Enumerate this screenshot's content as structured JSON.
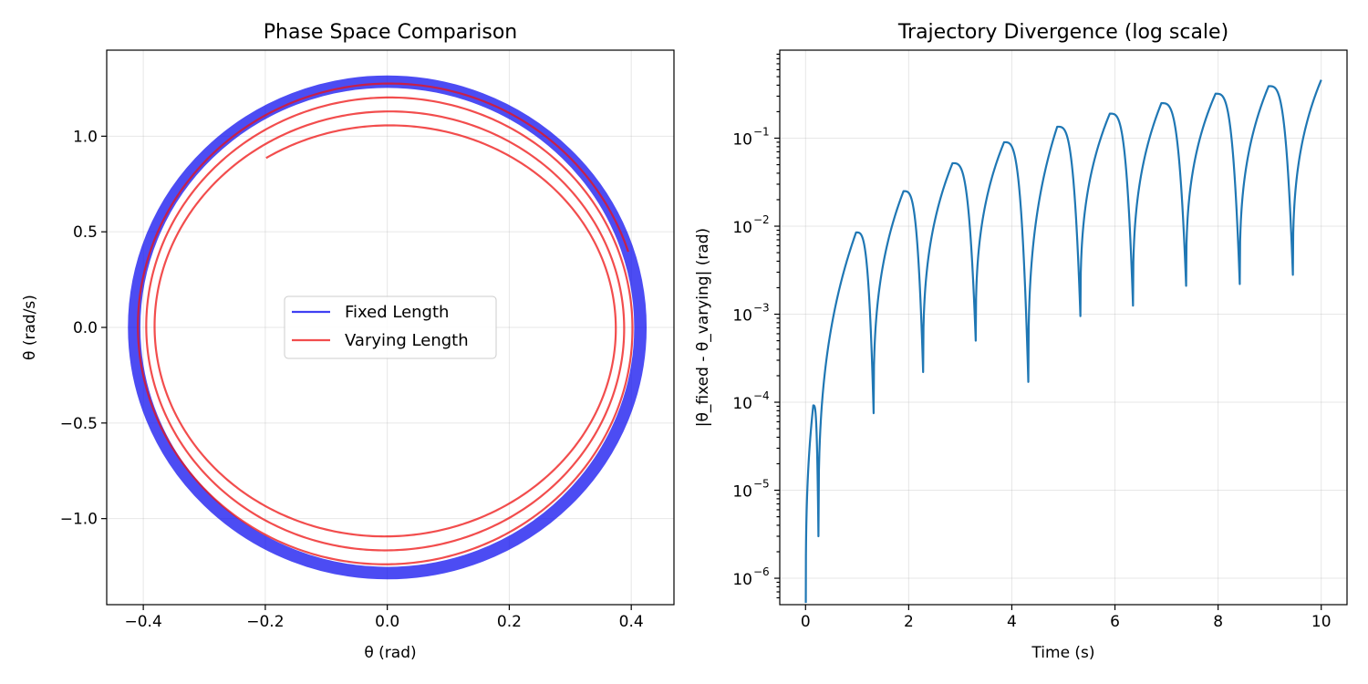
{
  "chart_data": [
    {
      "type": "line",
      "title": "Phase Space Comparison",
      "xlabel": "θ (rad)",
      "ylabel": "θ (rad/s)",
      "xlim": [
        -0.46,
        0.47
      ],
      "ylim": [
        -1.45,
        1.45
      ],
      "xticks": [
        -0.4,
        -0.2,
        0.0,
        0.2,
        0.4
      ],
      "xtick_labels": [
        "−0.4",
        "−0.2",
        "0.0",
        "0.2",
        "0.4"
      ],
      "yticks": [
        -1.0,
        -0.5,
        0.0,
        0.5,
        1.0
      ],
      "ytick_labels": [
        "−1.0",
        "−0.5",
        "0.0",
        "0.5",
        "1.0"
      ],
      "grid": true,
      "legend_position": "center",
      "series": [
        {
          "name": "Fixed Length",
          "color": "#0000ee",
          "shape": "closed ellipse band",
          "theta_amplitude_range": [
            0.41,
            0.42
          ],
          "omega_amplitude_range": [
            1.27,
            1.3
          ]
        },
        {
          "name": "Varying Length",
          "color": "#ee1111",
          "shape": "inward spiral",
          "start": [
            0.395,
            0.5
          ],
          "end": [
            -0.195,
            0.87
          ],
          "theta_amplitude_range": [
            0.415,
            0.37
          ],
          "omega_amplitude_range": [
            1.29,
            1.05
          ],
          "turns": 4
        }
      ]
    },
    {
      "type": "line",
      "title": "Trajectory Divergence (log scale)",
      "xlabel": "Time (s)",
      "ylabel": "|θ_fixed - θ_varying| (rad)",
      "yscale": "log",
      "xlim": [
        -0.5,
        10.5
      ],
      "ylim_log10": [
        -6.3,
        0.0
      ],
      "xticks": [
        0,
        2,
        4,
        6,
        8,
        10
      ],
      "xtick_labels": [
        "0",
        "2",
        "4",
        "6",
        "8",
        "10"
      ],
      "ytick_exponents": [
        -6,
        -5,
        -4,
        -3,
        -2,
        -1
      ],
      "tick_base": "10",
      "grid": true,
      "color": "#1f77b4",
      "dip_times": [
        0.25,
        1.32,
        2.28,
        3.3,
        4.32,
        5.33,
        6.35,
        7.38,
        8.42,
        9.45
      ],
      "dip_values": [
        3e-06,
        7.5e-05,
        0.00022,
        0.0005,
        0.00017,
        0.00095,
        0.00125,
        0.0021,
        0.0022,
        0.0028
      ],
      "peak_times": [
        0.15,
        0.98,
        1.9,
        2.85,
        3.85,
        4.88,
        5.9,
        6.9,
        7.95,
        8.98,
        10.0
      ],
      "peak_values": [
        9.2e-05,
        0.0085,
        0.025,
        0.052,
        0.09,
        0.135,
        0.19,
        0.25,
        0.32,
        0.39,
        0.46
      ]
    }
  ]
}
